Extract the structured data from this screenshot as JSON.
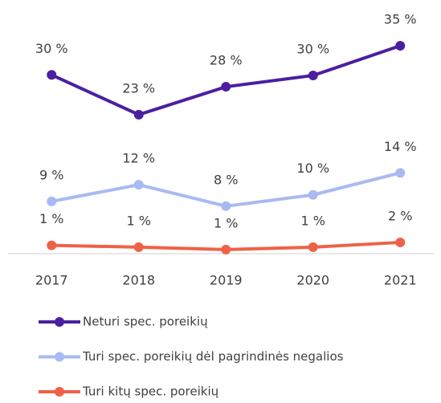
{
  "chart_data": {
    "type": "line",
    "categories": [
      "2017",
      "2018",
      "2019",
      "2020",
      "2021"
    ],
    "ylim": [
      0,
      40
    ],
    "legend": "bottom",
    "series": [
      {
        "name": "Neturi spec. poreikių",
        "color": "#4b1fa0",
        "values": [
          30.1,
          23.4,
          28.1,
          30,
          35
        ],
        "value_labels": [
          "30 %",
          "23 %",
          "28 %",
          "30 %",
          "35 %"
        ]
      },
      {
        "name": "Turi spec. poreikių dėl pagrindinės negalios",
        "color": "#a9b9f2",
        "values": [
          8.8,
          11.6,
          8.0,
          9.9,
          13.6
        ],
        "value_labels": [
          "9 %",
          "12 %",
          "8 %",
          "10 %",
          "14 %"
        ]
      },
      {
        "name": "Turi kitų spec. poreikių",
        "color": "#ef6147",
        "values": [
          1.4,
          1.1,
          0.7,
          1.1,
          1.9
        ],
        "value_labels": [
          "1 %",
          "1 %",
          "1 %",
          "1 %",
          "2 %"
        ]
      }
    ]
  }
}
